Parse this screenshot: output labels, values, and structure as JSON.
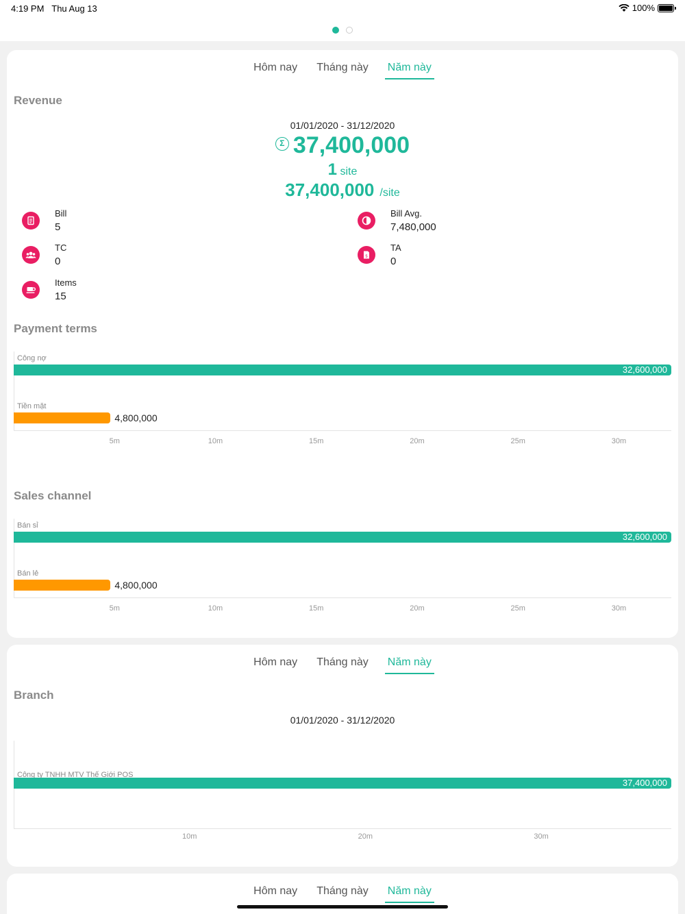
{
  "status": {
    "time": "4:19 PM",
    "date": "Thu Aug 13",
    "battery": "100%"
  },
  "tabs": [
    "Hôm nay",
    "Tháng này",
    "Năm này"
  ],
  "active_tab": 2,
  "revenue": {
    "title": "Revenue",
    "daterange": "01/01/2020 - 31/12/2020",
    "total": "37,400,000",
    "site_count": "1",
    "site_unit": "site",
    "per_site": "37,400,000",
    "per_site_unit": "/site",
    "stats": {
      "bill": {
        "label": "Bill",
        "value": "5",
        "icon": "document-icon"
      },
      "bill_avg": {
        "label": "Bill Avg.",
        "value": "7,480,000",
        "icon": "half-circle-icon"
      },
      "tc": {
        "label": "TC",
        "value": "0",
        "icon": "group-icon"
      },
      "ta": {
        "label": "TA",
        "value": "0",
        "icon": "invoice-icon"
      },
      "items": {
        "label": "Items",
        "value": "15",
        "icon": "cup-icon"
      }
    }
  },
  "payment_terms": {
    "title": "Payment terms"
  },
  "sales_channel": {
    "title": "Sales channel"
  },
  "branch": {
    "title": "Branch",
    "daterange": "01/01/2020 - 31/12/2020"
  },
  "colors": {
    "accent": "#1fb89a",
    "orange": "#ff9800",
    "icon_pink": "#e91e63"
  },
  "chart_data": [
    {
      "type": "bar",
      "orientation": "horizontal",
      "title": "Payment terms",
      "categories": [
        "Công nợ",
        "Tiền mặt"
      ],
      "values": [
        32600000,
        4800000
      ],
      "value_labels": [
        "32,600,000",
        "4,800,000"
      ],
      "colors": [
        "#1fb89a",
        "#ff9800"
      ],
      "xlim": [
        0,
        32600000
      ],
      "xticks": [
        5000000,
        10000000,
        15000000,
        20000000,
        25000000,
        30000000
      ],
      "xtick_labels": [
        "5m",
        "10m",
        "15m",
        "20m",
        "25m",
        "30m"
      ]
    },
    {
      "type": "bar",
      "orientation": "horizontal",
      "title": "Sales channel",
      "categories": [
        "Bán sỉ",
        "Bán lẻ"
      ],
      "values": [
        32600000,
        4800000
      ],
      "value_labels": [
        "32,600,000",
        "4,800,000"
      ],
      "colors": [
        "#1fb89a",
        "#ff9800"
      ],
      "xlim": [
        0,
        32600000
      ],
      "xticks": [
        5000000,
        10000000,
        15000000,
        20000000,
        25000000,
        30000000
      ],
      "xtick_labels": [
        "5m",
        "10m",
        "15m",
        "20m",
        "25m",
        "30m"
      ]
    },
    {
      "type": "bar",
      "orientation": "horizontal",
      "title": "Branch",
      "categories": [
        "Công ty TNHH MTV Thế Giới POS"
      ],
      "values": [
        37400000
      ],
      "value_labels": [
        "37,400,000"
      ],
      "colors": [
        "#1fb89a"
      ],
      "xlim": [
        0,
        37400000
      ],
      "xticks": [
        10000000,
        20000000,
        30000000
      ],
      "xtick_labels": [
        "10m",
        "20m",
        "30m"
      ]
    }
  ]
}
